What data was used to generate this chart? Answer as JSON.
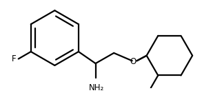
{
  "background_color": "#ffffff",
  "line_color": "#000000",
  "line_width": 1.6,
  "font_size_label": 8.5,
  "F_label": "F",
  "O_label": "O",
  "NH2_label": "NH₂"
}
